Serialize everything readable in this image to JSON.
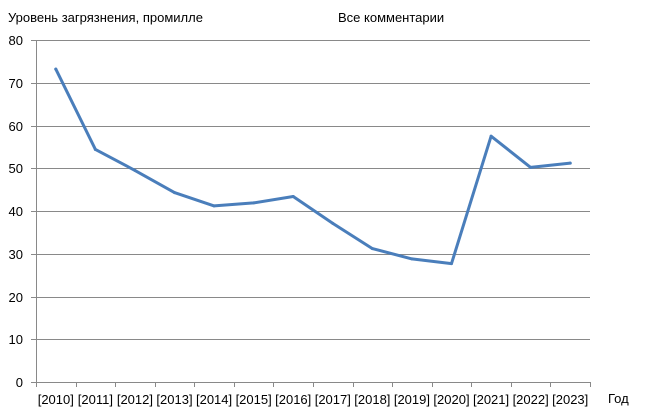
{
  "chart_data": {
    "type": "line",
    "ylabel": "Уровень загрязнения, промилле",
    "title": "Все комментарии",
    "xlabel": "Год",
    "categories": [
      "[2010]",
      "[2011]",
      "[2012]",
      "[2013]",
      "[2014]",
      "[2015]",
      "[2016]",
      "[2017]",
      "[2018]",
      "[2019]",
      "[2020]",
      "[2021]",
      "[2022]",
      "[2023]"
    ],
    "series": [
      {
        "values": [
          73.2,
          54.4,
          49.5,
          44.3,
          41.2,
          41.9,
          43.4,
          37.1,
          31.2,
          28.8,
          27.7,
          57.5,
          50.2,
          51.2
        ]
      }
    ],
    "ylim": [
      0,
      80
    ],
    "yticks": [
      0,
      10,
      20,
      30,
      40,
      50,
      60,
      70,
      80
    ],
    "grid": true,
    "line_color": "#4a7ebb"
  }
}
